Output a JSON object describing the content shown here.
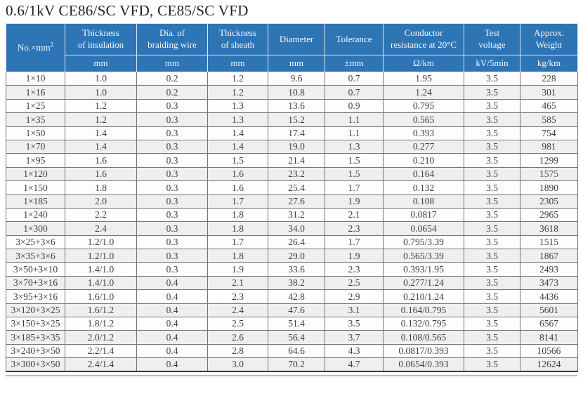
{
  "title": "0.6/1kV  CE86/SC VFD, CE85/SC VFD",
  "colors": {
    "header_bg": "#2E75B6",
    "header_text": "#F4F8FC",
    "alt_row_bg": "#EFEFEF"
  },
  "table": {
    "columns": [
      {
        "key": "size",
        "label": "No.×mm",
        "sup": "2",
        "unit": ""
      },
      {
        "key": "insulation_thickness",
        "label": "Thickness\nof insulation",
        "unit": "mm"
      },
      {
        "key": "braiding_wire_dia",
        "label": "Dia. of\nbraiding wire",
        "unit": "mm"
      },
      {
        "key": "sheath_thickness",
        "label": "Thickness\nof sheath",
        "unit": "mm"
      },
      {
        "key": "diameter",
        "label": "Diameter",
        "unit": "mm"
      },
      {
        "key": "tolerance",
        "label": "Tolerance",
        "unit": "±mm"
      },
      {
        "key": "conductor_resistance",
        "label": "Conductor\nresistance at 20°C",
        "unit": "Ω/km"
      },
      {
        "key": "test_voltage",
        "label": "Test\nvoltage",
        "unit": "kV/5min"
      },
      {
        "key": "approx_weight",
        "label": "Approx.\nWeight",
        "unit": "kg/km"
      }
    ],
    "rows": [
      [
        "1×10",
        "1.0",
        "0.2",
        "1.2",
        "9.6",
        "0.7",
        "1.95",
        "3.5",
        "228"
      ],
      [
        "1×16",
        "1.0",
        "0.2",
        "1.2",
        "10.8",
        "0.7",
        "1.24",
        "3.5",
        "301"
      ],
      [
        "1×25",
        "1.2",
        "0.3",
        "1.3",
        "13.6",
        "0.9",
        "0.795",
        "3.5",
        "465"
      ],
      [
        "1×35",
        "1.2",
        "0.3",
        "1.3",
        "15.2",
        "1.1",
        "0.565",
        "3.5",
        "585"
      ],
      [
        "1×50",
        "1.4",
        "0.3",
        "1.4",
        "17.4",
        "1.1",
        "0.393",
        "3.5",
        "754"
      ],
      [
        "1×70",
        "1.4",
        "0.3",
        "1.4",
        "19.0",
        "1.3",
        "0.277",
        "3.5",
        "981"
      ],
      [
        "1×95",
        "1.6",
        "0.3",
        "1.5",
        "21.4",
        "1.5",
        "0.210",
        "3.5",
        "1299"
      ],
      [
        "1×120",
        "1.6",
        "0.3",
        "1.6",
        "23.2",
        "1.5",
        "0.164",
        "3.5",
        "1575"
      ],
      [
        "1×150",
        "1.8",
        "0.3",
        "1.6",
        "25.4",
        "1.7",
        "0.132",
        "3.5",
        "1890"
      ],
      [
        "1×185",
        "2.0",
        "0.3",
        "1.7",
        "27.6",
        "1.9",
        "0.108",
        "3.5",
        "2305"
      ],
      [
        "1×240",
        "2.2",
        "0.3",
        "1.8",
        "31.2",
        "2.1",
        "0.0817",
        "3.5",
        "2965"
      ],
      [
        "1×300",
        "2.4",
        "0.3",
        "1.8",
        "34.0",
        "2.3",
        "0.0654",
        "3.5",
        "3618"
      ],
      [
        "3×25+3×6",
        "1.2/1.0",
        "0.3",
        "1.7",
        "26.4",
        "1.7",
        "0.795/3.39",
        "3.5",
        "1515"
      ],
      [
        "3×35+3×6",
        "1.2/1.0",
        "0.3",
        "1.8",
        "29.0",
        "1.9",
        "0.565/3.39",
        "3.5",
        "1867"
      ],
      [
        "3×50+3×10",
        "1.4/1.0",
        "0.3",
        "1.9",
        "33.6",
        "2.3",
        "0.393/1.95",
        "3.5",
        "2493"
      ],
      [
        "3×70+3×16",
        "1.4/1.0",
        "0.4",
        "2.1",
        "38.2",
        "2.5",
        "0.277/1.24",
        "3.5",
        "3473"
      ],
      [
        "3×95+3×16",
        "1.6/1.0",
        "0.4",
        "2.3",
        "42.8",
        "2.9",
        "0.210/1.24",
        "3.5",
        "4436"
      ],
      [
        "3×120+3×25",
        "1.6/1.2",
        "0.4",
        "2.4",
        "47.6",
        "3.1",
        "0.164/0.795",
        "3.5",
        "5601"
      ],
      [
        "3×150+3×25",
        "1.8/1.2",
        "0.4",
        "2.5",
        "51.4",
        "3.5",
        "0.132/0.795",
        "3.5",
        "6567"
      ],
      [
        "3×185+3×35",
        "2.0/1.2",
        "0.4",
        "2.6",
        "56.4",
        "3.7",
        "0.108/0.565",
        "3.5",
        "8141"
      ],
      [
        "3×240+3×50",
        "2.2/1.4",
        "0.4",
        "2.8",
        "64.6",
        "4.3",
        "0.0817/0.393",
        "3.5",
        "10566"
      ],
      [
        "3×300+3×50",
        "2.4/1.4",
        "0.4",
        "3.0",
        "70.2",
        "4.7",
        "0.0654/0.393",
        "3.5",
        "12624"
      ]
    ]
  }
}
